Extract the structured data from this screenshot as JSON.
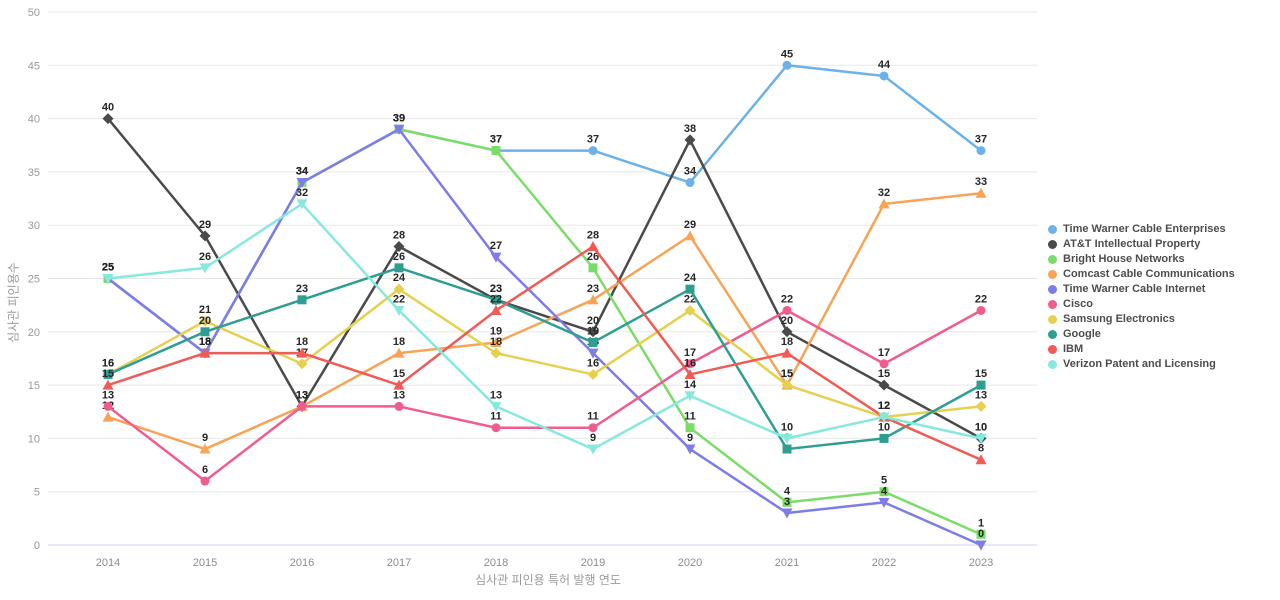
{
  "chart_data": {
    "type": "line",
    "title": "",
    "xlabel": "심사관 피인용 특허 발행 연도",
    "ylabel": "심사관 피인용수",
    "x_categories": [
      "2014",
      "2015",
      "2016",
      "2017",
      "2018",
      "2019",
      "2020",
      "2021",
      "2022",
      "2023"
    ],
    "y_ticks": [
      0,
      5,
      10,
      15,
      20,
      25,
      30,
      35,
      40,
      45,
      50
    ],
    "ylim": [
      0,
      50
    ],
    "grid": "horizontal",
    "legend_position": "right",
    "colors": {
      "axis_line": "#ccd3e8",
      "grid_line": "#e8e8e8",
      "tick_text": "#999999",
      "data_label": "#262626"
    },
    "series": [
      {
        "name": "Time Warner Cable Enterprises",
        "color": "#6cb2e8",
        "marker": "circle",
        "values": [
          25,
          18,
          34,
          39,
          37,
          37,
          34,
          45,
          44,
          37
        ]
      },
      {
        "name": "AT&T Intellectual Property",
        "color": "#4a4a4a",
        "marker": "diamond",
        "values": [
          40,
          29,
          13,
          28,
          23,
          20,
          38,
          20,
          15,
          10
        ]
      },
      {
        "name": "Bright House Networks",
        "color": "#7cdc6a",
        "marker": "square",
        "values": [
          25,
          18,
          34,
          39,
          37,
          26,
          11,
          4,
          5,
          1
        ]
      },
      {
        "name": "Comcast Cable Communications",
        "color": "#f7a456",
        "marker": "triangle-up",
        "values": [
          12,
          9,
          13,
          18,
          19,
          23,
          29,
          15,
          32,
          33
        ]
      },
      {
        "name": "Time Warner Cable Internet",
        "color": "#7e7ce8",
        "marker": "triangle-down",
        "values": [
          25,
          18,
          34,
          39,
          27,
          18,
          9,
          3,
          4,
          0
        ]
      },
      {
        "name": "Cisco",
        "color": "#f05c8e",
        "marker": "circle",
        "values": [
          13,
          6,
          13,
          13,
          11,
          11,
          17,
          22,
          17,
          22
        ]
      },
      {
        "name": "Samsung Electronics",
        "color": "#e6d04f",
        "marker": "diamond",
        "values": [
          16,
          21,
          17,
          24,
          18,
          16,
          22,
          15,
          12,
          13
        ]
      },
      {
        "name": "Google",
        "color": "#2f9e92",
        "marker": "square",
        "values": [
          16,
          20,
          23,
          26,
          23,
          19,
          24,
          9,
          10,
          15
        ]
      },
      {
        "name": "IBM",
        "color": "#f05b55",
        "marker": "triangle-up",
        "values": [
          15,
          18,
          18,
          15,
          22,
          28,
          16,
          18,
          12,
          8
        ]
      },
      {
        "name": "Verizon Patent and Licensing",
        "color": "#87e8de",
        "marker": "triangle-down",
        "values": [
          25,
          26,
          32,
          22,
          13,
          9,
          14,
          10,
          12,
          10
        ]
      }
    ]
  }
}
